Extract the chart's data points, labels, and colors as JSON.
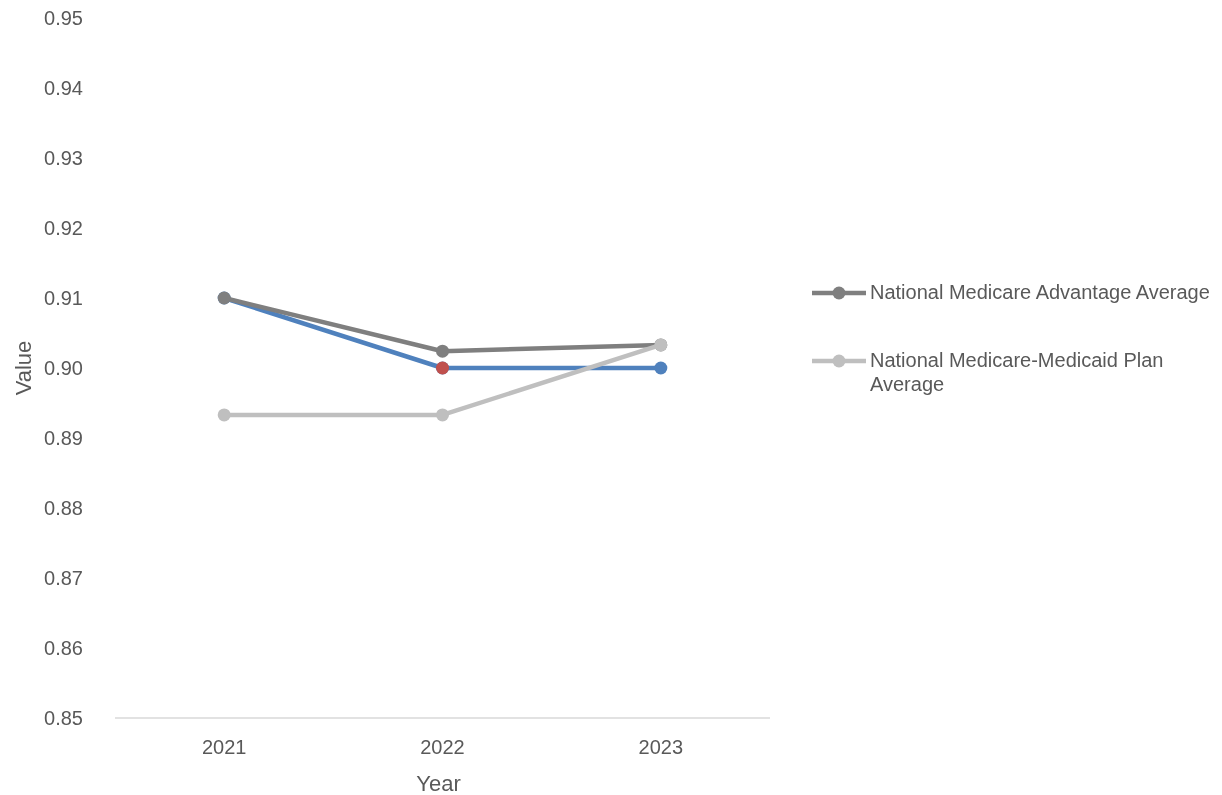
{
  "chart_data": {
    "type": "line",
    "xlabel": "Year",
    "ylabel": "Value",
    "categories": [
      "2021",
      "2022",
      "2023"
    ],
    "ylim": [
      0.85,
      0.95
    ],
    "yticks": [
      {
        "value": 0.85,
        "label": "0.85"
      },
      {
        "value": 0.86,
        "label": "0.86"
      },
      {
        "value": 0.87,
        "label": "0.87"
      },
      {
        "value": 0.88,
        "label": "0.88"
      },
      {
        "value": 0.89,
        "label": "0.89"
      },
      {
        "value": 0.9,
        "label": "0.90"
      },
      {
        "value": 0.91,
        "label": "0.91"
      },
      {
        "value": 0.92,
        "label": "0.92"
      },
      {
        "value": 0.93,
        "label": "0.93"
      },
      {
        "value": 0.94,
        "label": "0.94"
      },
      {
        "value": 0.95,
        "label": "0.95"
      }
    ],
    "legend": "right",
    "marker": "circle",
    "line_style": "solid",
    "series": [
      {
        "color": "#4f81bd",
        "values": [
          0.91,
          0.9,
          0.9
        ]
      },
      {
        "color": "#c0504d",
        "values": [
          null,
          0.9,
          null
        ]
      },
      {
        "name": "National Medicare Advantage Average",
        "color": "#7f7f7f",
        "values": [
          0.91,
          0.9024,
          0.9033
        ]
      },
      {
        "name": "National Medicare-Medicaid Plan Average",
        "color": "#bfbfbf",
        "values": [
          0.8933,
          0.8933,
          0.9033
        ]
      }
    ]
  }
}
